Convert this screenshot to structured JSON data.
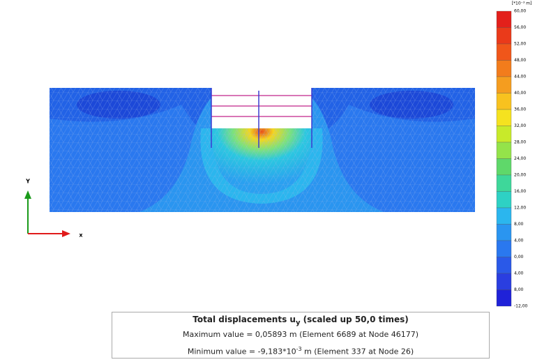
{
  "legend": {
    "unit": "[*10⁻³ m]",
    "labels": [
      "60,00",
      "56,00",
      "52,00",
      "48,00",
      "44,00",
      "40,00",
      "36,00",
      "32,00",
      "28,00",
      "24,00",
      "20,00",
      "16,00",
      "12,00",
      "8,00",
      "4,00",
      "0,00",
      "4,00",
      "8,00",
      "-12,00"
    ],
    "colors": [
      "#e3201b",
      "#ea3a1a",
      "#f0561a",
      "#f27c1c",
      "#f59d1f",
      "#f8c21f",
      "#f5e21f",
      "#c8ea2a",
      "#94e34a",
      "#5fd86a",
      "#3ed79a",
      "#2ed1c4",
      "#2bb6ee",
      "#2a95f0",
      "#2a78ef",
      "#2a59e8",
      "#2a3ee0",
      "#1f22d8"
    ]
  },
  "axes": {
    "y": "Y",
    "x": "x"
  },
  "info": {
    "title": "Total displacements u",
    "title_sub": "y",
    "title_rest": " (scaled up 50,0 times)",
    "max": "Maximum value = 0,05893 m (Element 6689 at Node 46177)",
    "min_start": "Minimum value = -9,183*10",
    "min_sup": "-3",
    "min_end": " m (Element 337 at Node 26)"
  }
}
